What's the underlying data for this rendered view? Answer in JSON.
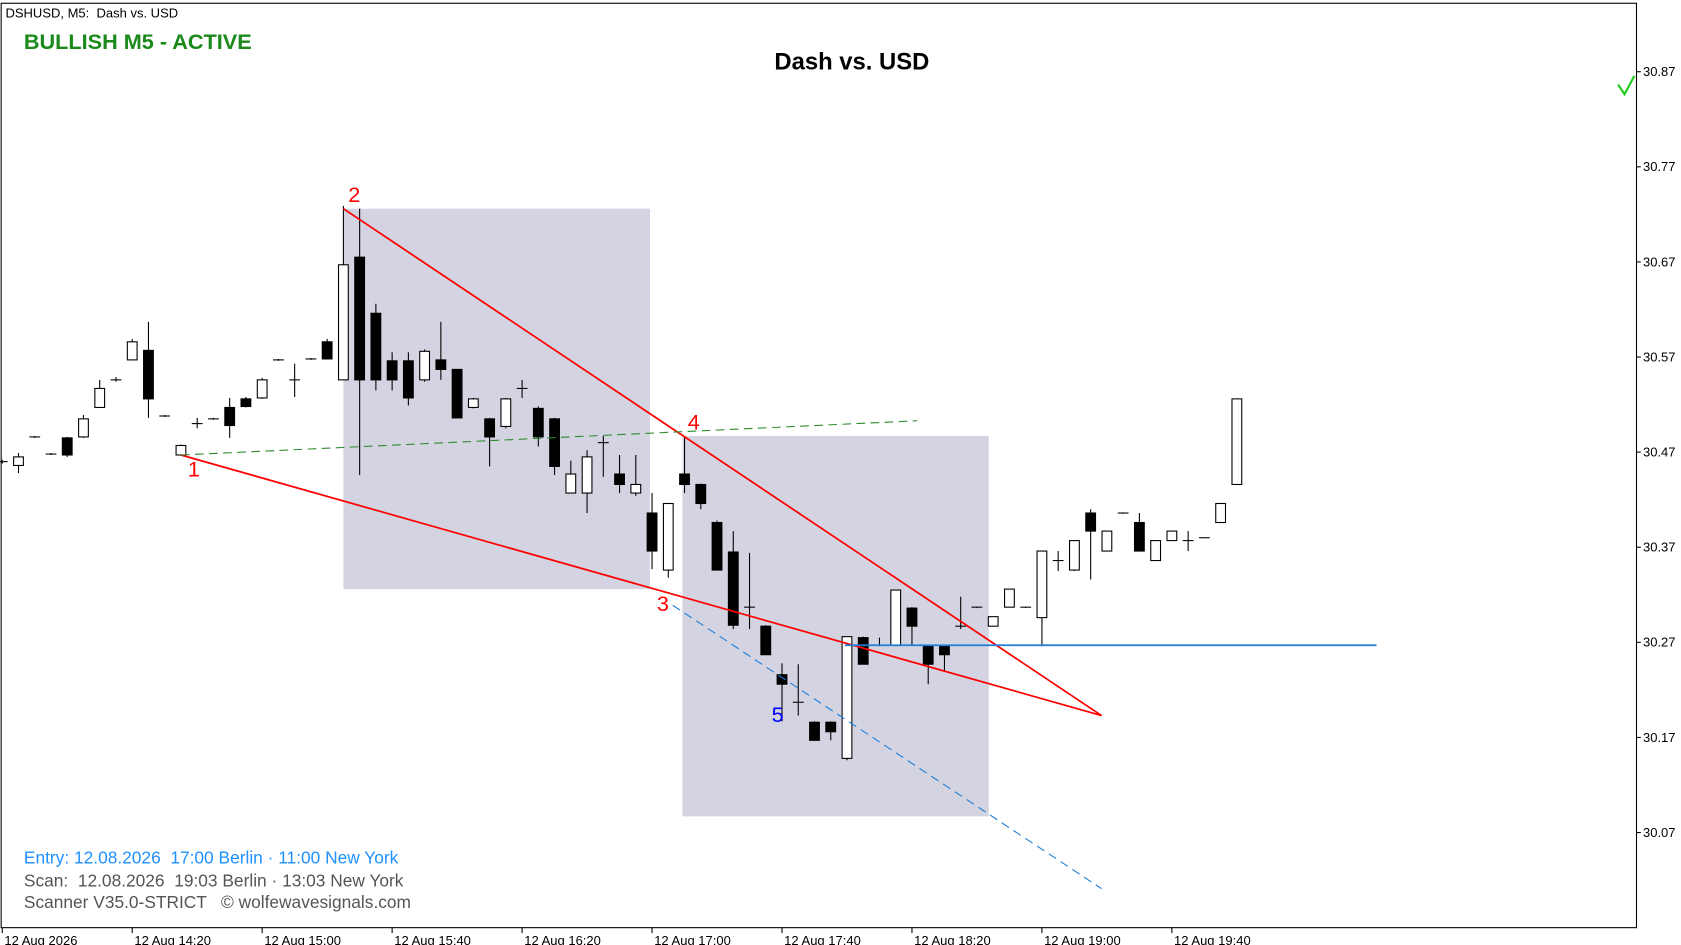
{
  "chart_data": {
    "type": "candlestick",
    "title": "Dash vs. USD",
    "symbol_label": "DSHUSD, M5:  Dash vs. USD",
    "status": "BULLISH M5 - ACTIVE",
    "info": [
      "Entry: 12.08.2026  17:00 Berlin · 11:00 New York",
      "Scan:  12.08.2026  19:03 Berlin · 13:03 New York",
      "Scanner V35.0-STRICT   © wolfewavesignals.com"
    ],
    "open": [
      30.46,
      30.456,
      30.486,
      30.468,
      30.485,
      30.486,
      30.517,
      30.546,
      30.567,
      30.577,
      30.508,
      30.467,
      30.5,
      30.505,
      30.517,
      30.526,
      30.527,
      30.567,
      30.546,
      30.568,
      30.586,
      30.546,
      30.675,
      30.616,
      30.566,
      30.566,
      30.546,
      30.567,
      30.557,
      30.517,
      30.505,
      30.497,
      30.537,
      30.516,
      30.505,
      30.427,
      30.427,
      30.48,
      30.447,
      30.427,
      30.406,
      30.346,
      30.447,
      30.436,
      30.396,
      30.365,
      30.307,
      30.287,
      30.236,
      30.207,
      30.186,
      30.186,
      30.148,
      30.275,
      30.267,
      30.267,
      30.306,
      30.267,
      30.266,
      30.287,
      30.307,
      30.287,
      30.307,
      30.307,
      30.296,
      30.356,
      30.346,
      30.406,
      30.366,
      30.406,
      30.396,
      30.356,
      30.377,
      30.377,
      30.38,
      30.396,
      30.436
    ],
    "high": [
      30.462,
      30.469,
      30.487,
      30.469,
      30.486,
      30.509,
      30.546,
      30.549,
      30.589,
      30.607,
      30.509,
      30.478,
      30.506,
      30.506,
      30.527,
      30.528,
      30.548,
      30.568,
      30.563,
      30.569,
      30.589,
      30.729,
      30.726,
      30.626,
      30.575,
      30.575,
      30.578,
      30.607,
      30.557,
      30.527,
      30.506,
      30.527,
      30.546,
      30.518,
      30.506,
      30.461,
      30.472,
      30.487,
      30.467,
      30.467,
      30.427,
      30.416,
      30.487,
      30.437,
      30.398,
      30.387,
      30.364,
      30.288,
      30.248,
      30.247,
      30.187,
      30.187,
      30.276,
      30.276,
      30.275,
      30.325,
      30.307,
      30.267,
      30.266,
      30.318,
      30.307,
      30.297,
      30.326,
      30.307,
      30.366,
      30.366,
      30.377,
      30.41,
      30.387,
      30.406,
      30.406,
      30.377,
      30.387,
      30.387,
      30.38,
      30.416,
      30.526
    ],
    "low": [
      30.458,
      30.448,
      30.485,
      30.467,
      30.465,
      30.485,
      30.517,
      30.544,
      30.567,
      30.506,
      30.507,
      30.467,
      30.495,
      30.504,
      30.485,
      30.517,
      30.526,
      30.566,
      30.528,
      30.567,
      30.568,
      30.546,
      30.446,
      30.535,
      30.535,
      30.519,
      30.544,
      30.546,
      30.506,
      30.516,
      30.455,
      30.495,
      30.527,
      30.476,
      30.446,
      30.427,
      30.406,
      30.444,
      30.427,
      30.424,
      30.347,
      30.338,
      30.427,
      30.41,
      30.346,
      30.284,
      30.284,
      30.257,
      30.187,
      30.193,
      30.167,
      30.167,
      30.146,
      30.247,
      30.266,
      30.266,
      30.267,
      30.226,
      30.239,
      30.284,
      30.306,
      30.287,
      30.307,
      30.306,
      30.266,
      30.345,
      30.345,
      30.336,
      30.366,
      30.405,
      30.366,
      30.356,
      30.377,
      30.366,
      30.38,
      30.396,
      30.436
    ],
    "close": [
      30.46,
      30.465,
      30.486,
      30.468,
      30.467,
      30.505,
      30.537,
      30.546,
      30.586,
      30.526,
      30.508,
      30.477,
      30.5,
      30.505,
      30.498,
      30.518,
      30.546,
      30.567,
      30.546,
      30.568,
      30.568,
      30.667,
      30.546,
      30.546,
      30.546,
      30.527,
      30.576,
      30.557,
      30.506,
      30.526,
      30.486,
      30.526,
      30.537,
      30.486,
      30.455,
      30.447,
      30.465,
      30.48,
      30.436,
      30.436,
      30.366,
      30.416,
      30.436,
      30.416,
      30.346,
      30.288,
      30.307,
      30.257,
      30.226,
      30.207,
      30.167,
      30.176,
      30.276,
      30.247,
      30.267,
      30.325,
      30.287,
      30.247,
      30.257,
      30.287,
      30.307,
      30.297,
      30.326,
      30.307,
      30.366,
      30.356,
      30.377,
      30.387,
      30.387,
      30.406,
      30.366,
      30.377,
      30.387,
      30.377,
      30.38,
      30.416,
      30.526
    ],
    "up_color": "#ffffff",
    "down_color": "#000000",
    "xlim": [
      -0.067,
      100.6
    ],
    "ylim": [
      29.97,
      30.942
    ],
    "yticks": [
      30.07,
      30.17,
      30.27,
      30.37,
      30.47,
      30.57,
      30.67,
      30.77,
      30.87
    ],
    "xticks": [
      {
        "value": 0,
        "label": "12 Aug 2026"
      },
      {
        "value": 8,
        "label": "12 Aug 14:20"
      },
      {
        "value": 16,
        "label": "12 Aug 15:00"
      },
      {
        "value": 24,
        "label": "12 Aug 15:40"
      },
      {
        "value": 32,
        "label": "12 Aug 16:20"
      },
      {
        "value": 40,
        "label": "12 Aug 17:00"
      },
      {
        "value": 48,
        "label": "12 Aug 17:40"
      },
      {
        "value": 56,
        "label": "12 Aug 18:20"
      },
      {
        "value": 64,
        "label": "12 Aug 19:00"
      },
      {
        "value": 72,
        "label": "12 Aug 19:40"
      }
    ],
    "zones": [
      {
        "x": [
          21,
          39.87
        ],
        "y": [
          30.326,
          30.726
        ]
      },
      {
        "x": [
          41.87,
          60.73
        ],
        "y": [
          30.087,
          30.487
        ]
      }
    ],
    "zone_color": "#d3d3e1",
    "lines": [
      {
        "x": [
          11,
          67.67
        ],
        "y": [
          30.467,
          30.193
        ],
        "color": "#ff0000",
        "dashed": false
      },
      {
        "x": [
          21,
          67.67
        ],
        "y": [
          30.726,
          30.193
        ],
        "color": "#ff0000",
        "dashed": false
      },
      {
        "x": [
          11,
          56.33
        ],
        "y": [
          30.467,
          30.503
        ],
        "color": "#2e8b2e",
        "dashed": true
      },
      {
        "x": [
          41.27,
          67.67
        ],
        "y": [
          30.309,
          30.011
        ],
        "color": "#1e7fd8",
        "dashed": true
      },
      {
        "x": [
          51.87,
          84.6
        ],
        "y": [
          30.267,
          30.267
        ],
        "color": "#1e7fd8",
        "dashed": false
      }
    ],
    "wave_points": [
      {
        "label": "1",
        "x": 11,
        "y": 30.467,
        "color": "#ff0000"
      },
      {
        "label": "2",
        "x": 21,
        "y": 30.726,
        "color": "#ff0000"
      },
      {
        "label": "3",
        "x": 40,
        "y": 30.326,
        "color": "#ff0000"
      },
      {
        "label": "4",
        "x": 41.9,
        "y": 30.487,
        "color": "#ff0000"
      },
      {
        "label": "5",
        "x": 49,
        "y": 30.186,
        "color": "#0000ff"
      }
    ]
  }
}
